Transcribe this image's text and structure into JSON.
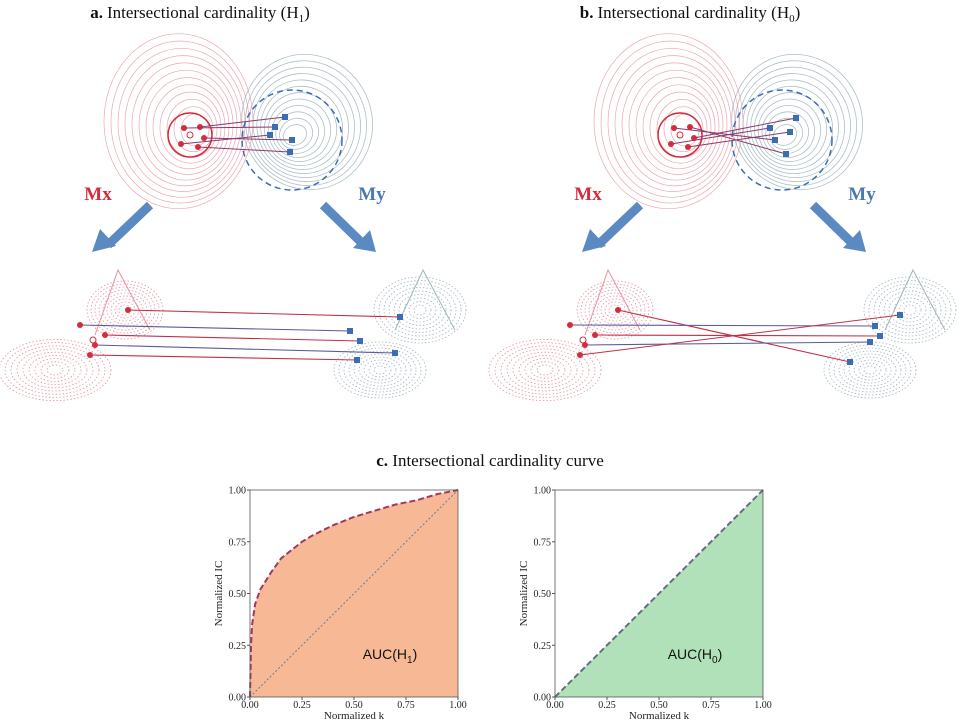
{
  "panels": [
    {
      "label": "a.",
      "title": "Intersectional cardinality (H",
      "subscript": "1",
      "title_end": ")",
      "left_label": "Mx",
      "right_label": "My"
    },
    {
      "label": "b.",
      "title": "Intersectional cardinality (H",
      "subscript": "0",
      "title_end": ")",
      "left_label": "Mx",
      "right_label": "My"
    }
  ],
  "section": {
    "label": "c.",
    "title": "Intersectional cardinality curve"
  },
  "chart_data": [
    {
      "type": "area",
      "x": [
        0,
        0.005,
        0.01,
        0.025,
        0.05,
        0.1,
        0.15,
        0.2,
        0.25,
        0.3,
        0.4,
        0.5,
        0.6,
        0.7,
        0.8,
        0.9,
        1.0
      ],
      "values": [
        0,
        0.25,
        0.35,
        0.45,
        0.52,
        0.6,
        0.67,
        0.71,
        0.75,
        0.78,
        0.83,
        0.87,
        0.9,
        0.93,
        0.95,
        0.98,
        1.0
      ],
      "color": "#f7b995",
      "line_color": "#a5365e",
      "reference": {
        "x": [
          0,
          1
        ],
        "values": [
          0,
          1
        ],
        "color": "#6b7a99"
      },
      "xlim": [
        0,
        1
      ],
      "ylim": [
        0,
        1
      ],
      "xticks": [
        {
          "value": 0,
          "label": "0.00"
        },
        {
          "value": 0.25,
          "label": "0.25"
        },
        {
          "value": 0.5,
          "label": "0.50"
        },
        {
          "value": 0.75,
          "label": "0.75"
        },
        {
          "value": 1,
          "label": "1.00"
        }
      ],
      "yticks": [
        {
          "value": 0,
          "label": "0.00"
        },
        {
          "value": 0.25,
          "label": "0.25"
        },
        {
          "value": 0.5,
          "label": "0.50"
        },
        {
          "value": 0.75,
          "label": "0.75"
        },
        {
          "value": 1,
          "label": "1.00"
        }
      ],
      "xlabel": "Normalized k",
      "ylabel": "Normalized IC",
      "annotation": [
        "AUC(H",
        "1",
        ")"
      ]
    },
    {
      "type": "area",
      "x": [
        0,
        1
      ],
      "values": [
        0,
        1
      ],
      "color": "#b1e1b8",
      "line_color": "#5e7087",
      "xlim": [
        0,
        1
      ],
      "ylim": [
        0,
        1
      ],
      "xticks": [
        {
          "value": 0,
          "label": "0.00"
        },
        {
          "value": 0.25,
          "label": "0.25"
        },
        {
          "value": 0.5,
          "label": "0.50"
        },
        {
          "value": 0.75,
          "label": "0.75"
        },
        {
          "value": 1,
          "label": "1.00"
        }
      ],
      "yticks": [
        {
          "value": 0,
          "label": "0.00"
        },
        {
          "value": 0.25,
          "label": "0.25"
        },
        {
          "value": 0.5,
          "label": "0.50"
        },
        {
          "value": 0.75,
          "label": "0.75"
        },
        {
          "value": 1,
          "label": "1.00"
        }
      ],
      "xlabel": "Normalized k",
      "ylabel": "Normalized IC",
      "annotation": [
        "AUC(H",
        "0",
        ")"
      ]
    }
  ]
}
